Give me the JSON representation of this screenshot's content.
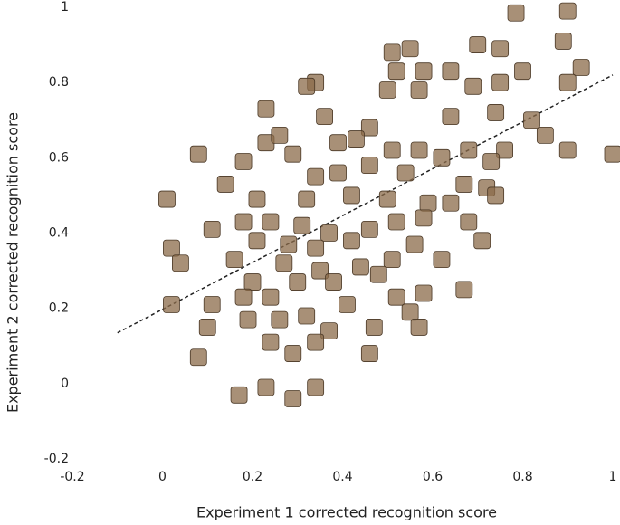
{
  "chart_data": {
    "type": "scatter",
    "xlabel": "Experiment 1 corrected recognition score",
    "ylabel": "Experiment 2 corrected recognition score",
    "xlim": [
      -0.2,
      1
    ],
    "ylim": [
      -0.2,
      1
    ],
    "xticks": [
      -0.2,
      0,
      0.2,
      0.4,
      0.6,
      0.8,
      1
    ],
    "yticks": [
      -0.2,
      0,
      0.2,
      0.4,
      0.6,
      0.8,
      1
    ],
    "grid": false,
    "color": "#8b6b4a",
    "trendline": {
      "x": [
        -0.1,
        1
      ],
      "y": [
        0.135,
        0.82
      ],
      "color": "#222"
    },
    "x": [
      0.785,
      0.9,
      0.51,
      0.55,
      0.7,
      0.75,
      0.89,
      0.52,
      0.58,
      0.64,
      0.8,
      0.93,
      0.34,
      0.32,
      0.5,
      0.57,
      0.69,
      0.75,
      0.9,
      0.23,
      0.36,
      0.46,
      0.64,
      0.74,
      0.82,
      0.85,
      0.08,
      0.23,
      0.26,
      0.29,
      0.39,
      0.43,
      0.51,
      0.57,
      0.62,
      0.68,
      0.76,
      0.9,
      1.0,
      0.18,
      0.54,
      0.73,
      0.46,
      0.34,
      0.39,
      0.14,
      0.72,
      0.67,
      0.01,
      0.21,
      0.32,
      0.42,
      0.5,
      0.59,
      0.64,
      0.74,
      0.11,
      0.18,
      0.24,
      0.31,
      0.37,
      0.46,
      0.52,
      0.58,
      0.68,
      0.02,
      0.21,
      0.28,
      0.34,
      0.42,
      0.56,
      0.71,
      0.04,
      0.16,
      0.27,
      0.35,
      0.44,
      0.51,
      0.62,
      0.2,
      0.3,
      0.38,
      0.48,
      0.67,
      0.02,
      0.11,
      0.18,
      0.24,
      0.41,
      0.52,
      0.58,
      0.1,
      0.19,
      0.26,
      0.32,
      0.37,
      0.47,
      0.55,
      0.57,
      0.24,
      0.34,
      0.29,
      0.08,
      0.46,
      0.17,
      0.23,
      0.29,
      0.34
    ],
    "y": [
      0.985,
      0.99,
      0.88,
      0.89,
      0.9,
      0.89,
      0.91,
      0.83,
      0.83,
      0.83,
      0.83,
      0.84,
      0.8,
      0.79,
      0.78,
      0.78,
      0.79,
      0.8,
      0.8,
      0.73,
      0.71,
      0.68,
      0.71,
      0.72,
      0.7,
      0.66,
      0.61,
      0.64,
      0.66,
      0.61,
      0.64,
      0.65,
      0.62,
      0.62,
      0.6,
      0.62,
      0.62,
      0.62,
      0.61,
      0.59,
      0.56,
      0.59,
      0.58,
      0.55,
      0.56,
      0.53,
      0.52,
      0.53,
      0.49,
      0.49,
      0.49,
      0.5,
      0.49,
      0.48,
      0.48,
      0.5,
      0.41,
      0.43,
      0.43,
      0.42,
      0.4,
      0.41,
      0.43,
      0.44,
      0.43,
      0.36,
      0.38,
      0.37,
      0.36,
      0.38,
      0.37,
      0.38,
      0.32,
      0.33,
      0.32,
      0.3,
      0.31,
      0.33,
      0.33,
      0.27,
      0.27,
      0.27,
      0.29,
      0.25,
      0.21,
      0.21,
      0.23,
      0.23,
      0.21,
      0.23,
      0.24,
      0.15,
      0.17,
      0.17,
      0.18,
      0.14,
      0.15,
      0.19,
      0.15,
      0.11,
      0.11,
      0.08,
      0.07,
      0.08,
      -0.03,
      -0.01,
      -0.04,
      -0.01
    ]
  }
}
